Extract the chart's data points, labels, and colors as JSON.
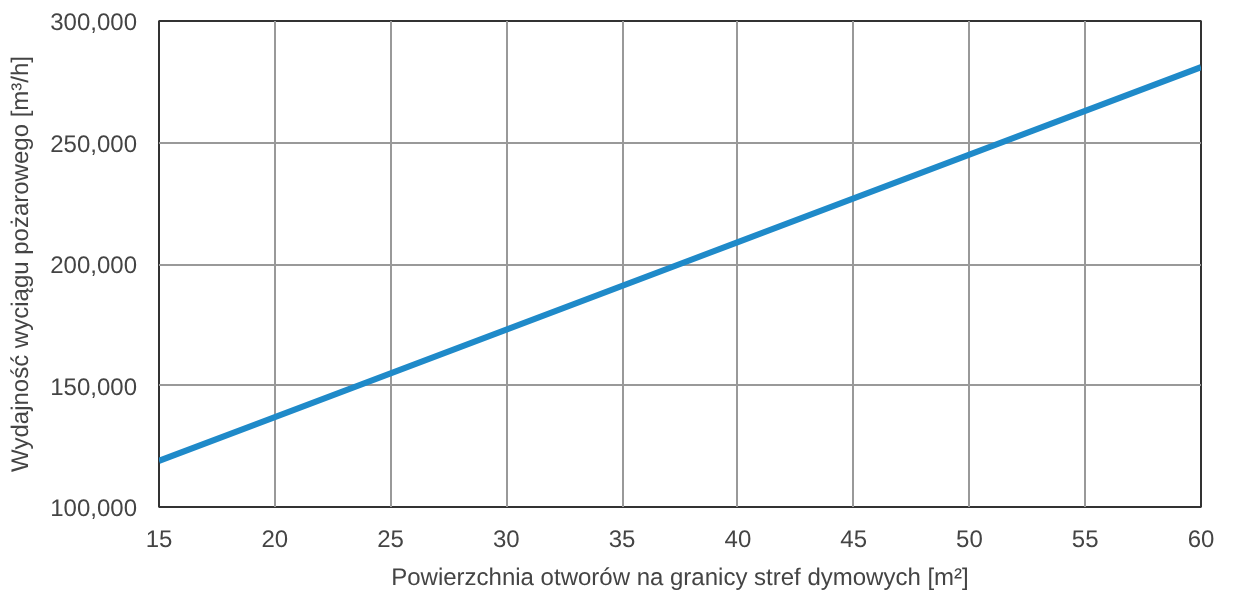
{
  "chart_data": {
    "type": "line",
    "xlabel": "Powierzchnia otworów na granicy stref dymowych [m²]",
    "ylabel": "Wydajność wyciągu pożarowego [m³/h]",
    "x": [
      15,
      40,
      60
    ],
    "series": [
      {
        "color": "#1f8ac9",
        "values": [
          119000,
          209000,
          281000
        ]
      }
    ],
    "xlim": [
      15,
      60
    ],
    "xticks": [
      15,
      20,
      25,
      30,
      35,
      40,
      45,
      50,
      55,
      60
    ],
    "ylim": [
      100000,
      300000
    ],
    "yticks": [
      {
        "value": 100000,
        "label": "100,000"
      },
      {
        "value": 150000,
        "label": "150,000"
      },
      {
        "value": 200000,
        "label": "200,000"
      },
      {
        "value": 250000,
        "label": "250,000"
      },
      {
        "value": 300000,
        "label": "300,000"
      }
    ],
    "grid": true,
    "marker": "none",
    "line_style": "solid"
  }
}
